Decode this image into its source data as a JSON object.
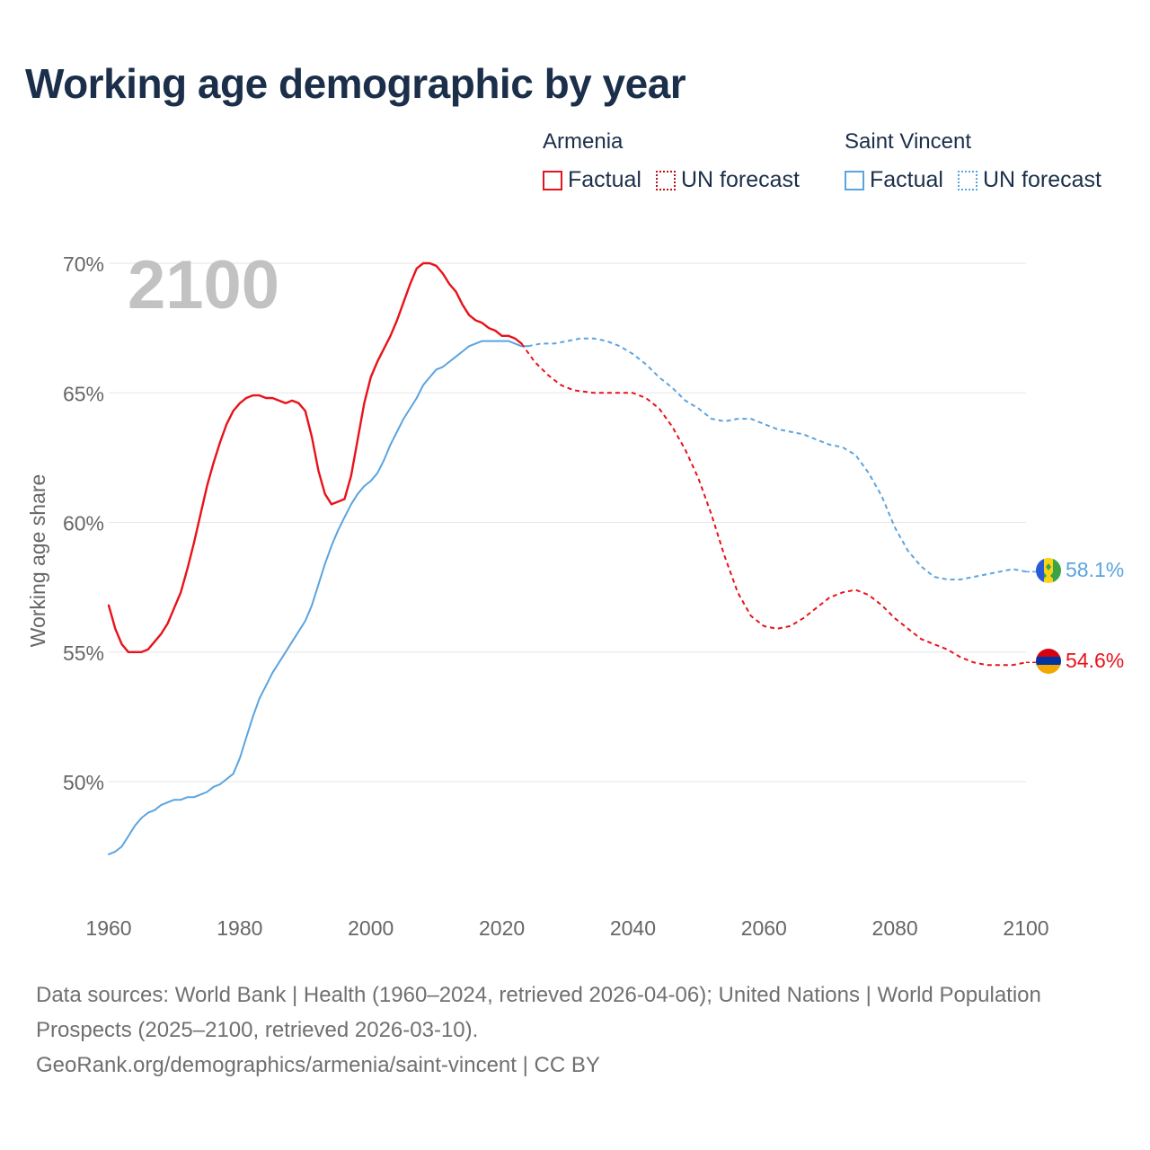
{
  "title": "Working age demographic by year",
  "legend": {
    "groups": [
      {
        "name": "Armenia",
        "factual": "Factual",
        "forecast": "UN forecast",
        "color": "#e8121a"
      },
      {
        "name": "Saint Vincent",
        "factual": "Factual",
        "forecast": "UN forecast",
        "color": "#5aa4e0"
      }
    ]
  },
  "footer": {
    "line1": "Data sources: World Bank | Health (1960–2024, retrieved 2026-04-06); United Nations | World Population Prospects (2025–2100, retrieved 2026-03-10).",
    "line2": "GeoRank.org/demographics/armenia/saint-vincent | CC BY"
  },
  "chart_data": {
    "type": "line",
    "title": "Working age demographic by year",
    "ylabel": "Working age share",
    "xlabel": "",
    "year_watermark": "2100",
    "xlim": [
      1960,
      2100
    ],
    "ylim": [
      47,
      70
    ],
    "x_ticks": [
      1960,
      1980,
      2000,
      2020,
      2040,
      2060,
      2080,
      2100
    ],
    "x_tick_labels": [
      "1960",
      "1980",
      "2000",
      "2020",
      "2040",
      "2060",
      "2080",
      "2100"
    ],
    "y_ticks": [
      50,
      55,
      60,
      65,
      70
    ],
    "y_tick_labels": [
      "50%",
      "55%",
      "60%",
      "65%",
      "70%"
    ],
    "grid": true,
    "series": [
      {
        "name": "Armenia",
        "color": "#e8121a",
        "end_label": "54.6%",
        "factual": [
          [
            1960,
            56.8
          ],
          [
            1961,
            55.9
          ],
          [
            1962,
            55.3
          ],
          [
            1963,
            55.0
          ],
          [
            1964,
            55.0
          ],
          [
            1965,
            55.0
          ],
          [
            1966,
            55.1
          ],
          [
            1967,
            55.4
          ],
          [
            1968,
            55.7
          ],
          [
            1969,
            56.1
          ],
          [
            1970,
            56.7
          ],
          [
            1971,
            57.3
          ],
          [
            1972,
            58.2
          ],
          [
            1973,
            59.2
          ],
          [
            1974,
            60.3
          ],
          [
            1975,
            61.4
          ],
          [
            1976,
            62.3
          ],
          [
            1977,
            63.1
          ],
          [
            1978,
            63.8
          ],
          [
            1979,
            64.3
          ],
          [
            1980,
            64.6
          ],
          [
            1981,
            64.8
          ],
          [
            1982,
            64.9
          ],
          [
            1983,
            64.9
          ],
          [
            1984,
            64.8
          ],
          [
            1985,
            64.8
          ],
          [
            1986,
            64.7
          ],
          [
            1987,
            64.6
          ],
          [
            1988,
            64.7
          ],
          [
            1989,
            64.6
          ],
          [
            1990,
            64.3
          ],
          [
            1991,
            63.3
          ],
          [
            1992,
            62.0
          ],
          [
            1993,
            61.1
          ],
          [
            1994,
            60.7
          ],
          [
            1995,
            60.8
          ],
          [
            1996,
            60.9
          ],
          [
            1997,
            61.8
          ],
          [
            1998,
            63.2
          ],
          [
            1999,
            64.6
          ],
          [
            2000,
            65.6
          ],
          [
            2001,
            66.2
          ],
          [
            2002,
            66.7
          ],
          [
            2003,
            67.2
          ],
          [
            2004,
            67.8
          ],
          [
            2005,
            68.5
          ],
          [
            2006,
            69.2
          ],
          [
            2007,
            69.8
          ],
          [
            2008,
            70.0
          ],
          [
            2009,
            70.0
          ],
          [
            2010,
            69.9
          ],
          [
            2011,
            69.6
          ],
          [
            2012,
            69.2
          ],
          [
            2013,
            68.9
          ],
          [
            2014,
            68.4
          ],
          [
            2015,
            68.0
          ],
          [
            2016,
            67.8
          ],
          [
            2017,
            67.7
          ],
          [
            2018,
            67.5
          ],
          [
            2019,
            67.4
          ],
          [
            2020,
            67.2
          ],
          [
            2021,
            67.2
          ],
          [
            2022,
            67.1
          ],
          [
            2023,
            66.9
          ]
        ],
        "forecast": [
          [
            2023,
            66.9
          ],
          [
            2025,
            66.2
          ],
          [
            2027,
            65.7
          ],
          [
            2029,
            65.3
          ],
          [
            2031,
            65.1
          ],
          [
            2034,
            65.0
          ],
          [
            2037,
            65.0
          ],
          [
            2040,
            65.0
          ],
          [
            2042,
            64.8
          ],
          [
            2044,
            64.4
          ],
          [
            2046,
            63.7
          ],
          [
            2048,
            62.8
          ],
          [
            2050,
            61.7
          ],
          [
            2052,
            60.3
          ],
          [
            2054,
            58.7
          ],
          [
            2056,
            57.3
          ],
          [
            2058,
            56.4
          ],
          [
            2060,
            56.0
          ],
          [
            2062,
            55.9
          ],
          [
            2064,
            56.0
          ],
          [
            2066,
            56.3
          ],
          [
            2068,
            56.7
          ],
          [
            2070,
            57.1
          ],
          [
            2072,
            57.3
          ],
          [
            2074,
            57.4
          ],
          [
            2076,
            57.2
          ],
          [
            2078,
            56.8
          ],
          [
            2080,
            56.3
          ],
          [
            2082,
            55.9
          ],
          [
            2084,
            55.5
          ],
          [
            2086,
            55.3
          ],
          [
            2088,
            55.1
          ],
          [
            2090,
            54.8
          ],
          [
            2092,
            54.6
          ],
          [
            2094,
            54.5
          ],
          [
            2096,
            54.5
          ],
          [
            2098,
            54.5
          ],
          [
            2100,
            54.6
          ]
        ]
      },
      {
        "name": "Saint Vincent",
        "color": "#5aa4e0",
        "end_label": "58.1%",
        "factual": [
          [
            1960,
            47.2
          ],
          [
            1961,
            47.3
          ],
          [
            1962,
            47.5
          ],
          [
            1963,
            47.9
          ],
          [
            1964,
            48.3
          ],
          [
            1965,
            48.6
          ],
          [
            1966,
            48.8
          ],
          [
            1967,
            48.9
          ],
          [
            1968,
            49.1
          ],
          [
            1969,
            49.2
          ],
          [
            1970,
            49.3
          ],
          [
            1971,
            49.3
          ],
          [
            1972,
            49.4
          ],
          [
            1973,
            49.4
          ],
          [
            1974,
            49.5
          ],
          [
            1975,
            49.6
          ],
          [
            1976,
            49.8
          ],
          [
            1977,
            49.9
          ],
          [
            1978,
            50.1
          ],
          [
            1979,
            50.3
          ],
          [
            1980,
            50.9
          ],
          [
            1981,
            51.7
          ],
          [
            1982,
            52.5
          ],
          [
            1983,
            53.2
          ],
          [
            1984,
            53.7
          ],
          [
            1985,
            54.2
          ],
          [
            1986,
            54.6
          ],
          [
            1987,
            55.0
          ],
          [
            1988,
            55.4
          ],
          [
            1989,
            55.8
          ],
          [
            1990,
            56.2
          ],
          [
            1991,
            56.8
          ],
          [
            1992,
            57.6
          ],
          [
            1993,
            58.4
          ],
          [
            1994,
            59.1
          ],
          [
            1995,
            59.7
          ],
          [
            1996,
            60.2
          ],
          [
            1997,
            60.7
          ],
          [
            1998,
            61.1
          ],
          [
            1999,
            61.4
          ],
          [
            2000,
            61.6
          ],
          [
            2001,
            61.9
          ],
          [
            2002,
            62.4
          ],
          [
            2003,
            63.0
          ],
          [
            2004,
            63.5
          ],
          [
            2005,
            64.0
          ],
          [
            2006,
            64.4
          ],
          [
            2007,
            64.8
          ],
          [
            2008,
            65.3
          ],
          [
            2009,
            65.6
          ],
          [
            2010,
            65.9
          ],
          [
            2011,
            66.0
          ],
          [
            2012,
            66.2
          ],
          [
            2013,
            66.4
          ],
          [
            2014,
            66.6
          ],
          [
            2015,
            66.8
          ],
          [
            2016,
            66.9
          ],
          [
            2017,
            67.0
          ],
          [
            2018,
            67.0
          ],
          [
            2019,
            67.0
          ],
          [
            2020,
            67.0
          ],
          [
            2021,
            67.0
          ],
          [
            2022,
            66.9
          ],
          [
            2023,
            66.8
          ],
          [
            2024,
            66.8
          ]
        ],
        "forecast": [
          [
            2024,
            66.8
          ],
          [
            2026,
            66.9
          ],
          [
            2028,
            66.9
          ],
          [
            2030,
            67.0
          ],
          [
            2032,
            67.1
          ],
          [
            2034,
            67.1
          ],
          [
            2036,
            67.0
          ],
          [
            2038,
            66.8
          ],
          [
            2040,
            66.5
          ],
          [
            2042,
            66.1
          ],
          [
            2044,
            65.6
          ],
          [
            2046,
            65.2
          ],
          [
            2048,
            64.7
          ],
          [
            2050,
            64.4
          ],
          [
            2052,
            64.0
          ],
          [
            2054,
            63.9
          ],
          [
            2056,
            64.0
          ],
          [
            2058,
            64.0
          ],
          [
            2060,
            63.8
          ],
          [
            2062,
            63.6
          ],
          [
            2064,
            63.5
          ],
          [
            2066,
            63.4
          ],
          [
            2068,
            63.2
          ],
          [
            2070,
            63.0
          ],
          [
            2072,
            62.9
          ],
          [
            2074,
            62.6
          ],
          [
            2076,
            61.9
          ],
          [
            2078,
            61.0
          ],
          [
            2080,
            59.8
          ],
          [
            2082,
            58.9
          ],
          [
            2084,
            58.3
          ],
          [
            2086,
            57.9
          ],
          [
            2088,
            57.8
          ],
          [
            2090,
            57.8
          ],
          [
            2092,
            57.9
          ],
          [
            2094,
            58.0
          ],
          [
            2096,
            58.1
          ],
          [
            2098,
            58.2
          ],
          [
            2100,
            58.1
          ]
        ]
      }
    ]
  }
}
